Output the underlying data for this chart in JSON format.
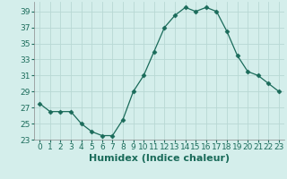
{
  "xlabel": "Humidex (Indice chaleur)",
  "x": [
    0,
    1,
    2,
    3,
    4,
    5,
    6,
    7,
    8,
    9,
    10,
    11,
    12,
    13,
    14,
    15,
    16,
    17,
    18,
    19,
    20,
    21,
    22,
    23
  ],
  "y": [
    27.5,
    26.5,
    26.5,
    26.5,
    25.0,
    24.0,
    23.5,
    23.5,
    25.5,
    29.0,
    31.0,
    34.0,
    37.0,
    38.5,
    39.5,
    39.0,
    39.5,
    39.0,
    36.5,
    33.5,
    31.5,
    31.0,
    30.0,
    29.0
  ],
  "ylim": [
    23,
    40
  ],
  "xlim": [
    -0.5,
    23.5
  ],
  "yticks": [
    23,
    25,
    27,
    29,
    31,
    33,
    35,
    37,
    39
  ],
  "xticks": [
    0,
    1,
    2,
    3,
    4,
    5,
    6,
    7,
    8,
    9,
    10,
    11,
    12,
    13,
    14,
    15,
    16,
    17,
    18,
    19,
    20,
    21,
    22,
    23
  ],
  "line_color": "#1a6b5a",
  "marker": "D",
  "marker_size": 2.5,
  "bg_color": "#d4eeeb",
  "grid_color": "#b8d8d4",
  "tick_label_fontsize": 6.5,
  "xlabel_fontsize": 8
}
